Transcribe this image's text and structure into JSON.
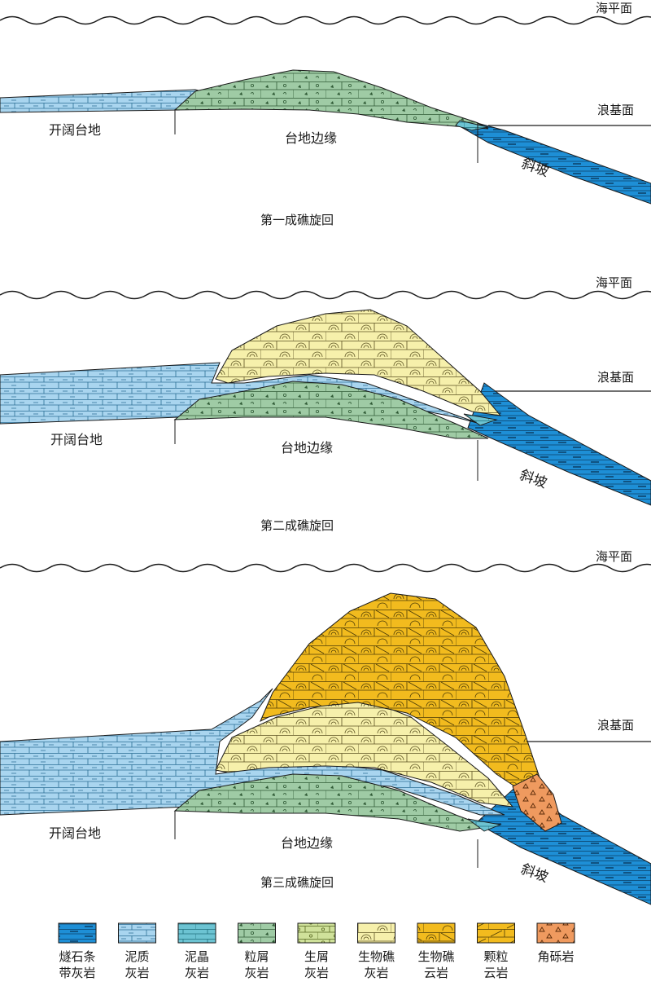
{
  "labels": {
    "sea_level": "海平面",
    "wave_base": "浪基面",
    "open_platform": "开阔台地",
    "platform_margin": "台地边缘",
    "slope": "斜坡"
  },
  "panels": [
    {
      "title": "第一成礁旋回"
    },
    {
      "title": "第二成礁旋回"
    },
    {
      "title": "第三成礁旋回"
    }
  ],
  "legend": [
    {
      "line1": "燧石条",
      "line2": "带灰岩",
      "pattern": "chert",
      "color": "#1e8fd6"
    },
    {
      "line1": "泥质",
      "line2": "灰岩",
      "pattern": "muddy",
      "color": "#a9d5ef"
    },
    {
      "line1": "泥晶",
      "line2": "灰岩",
      "pattern": "micrite",
      "color": "#6cc3d2"
    },
    {
      "line1": "粒屑",
      "line2": "灰岩",
      "pattern": "grain",
      "color": "#9fcba5"
    },
    {
      "line1": "生屑",
      "line2": "灰岩",
      "pattern": "bioclast",
      "color": "#cfe19a"
    },
    {
      "line1": "生物礁",
      "line2": "灰岩",
      "pattern": "reefls",
      "color": "#f6f0ab"
    },
    {
      "line1": "生物礁",
      "line2": "云岩",
      "pattern": "reefdol",
      "color": "#f2bb1e"
    },
    {
      "line1": "颗粒",
      "line2": "云岩",
      "pattern": "graindol",
      "color": "#f2bb1e"
    },
    {
      "line1": "角砾岩",
      "line2": "",
      "pattern": "breccia",
      "color": "#ef9a5f"
    }
  ],
  "colors": {
    "chert": "#1e8fd6",
    "muddy": "#a9d5ef",
    "micrite": "#6cc3d2",
    "grain": "#9fcba5",
    "reef_limestone": "#f6f0ab",
    "reef_dolomite": "#f2bb1e",
    "breccia": "#ef9a5f",
    "line": "#1a1a1a"
  }
}
